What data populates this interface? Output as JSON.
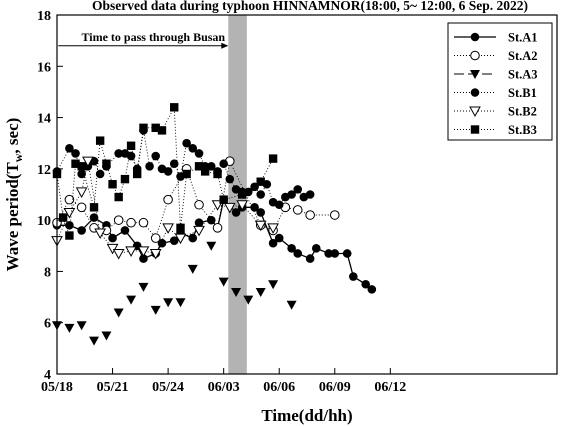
{
  "chart_data": {
    "type": "line",
    "title": "Observed data during typhoon HINNAMNOR(18:00, 5~ 12:00, 6  Sep. 2022)",
    "xlabel": "Time(dd/hh)",
    "ylabel_main": "Wave period(T",
    "ylabel_sub": "w",
    "ylabel_tail": ", sec)",
    "xlim": [
      0,
      27
    ],
    "ylim": [
      4,
      18
    ],
    "x_ticks": [
      {
        "x": 0,
        "label": "05/18"
      },
      {
        "x": 3,
        "label": "05/21"
      },
      {
        "x": 6,
        "label": "05/24"
      },
      {
        "x": 9,
        "label": "06/03"
      },
      {
        "x": 12,
        "label": "06/06"
      },
      {
        "x": 15,
        "label": "06/09"
      },
      {
        "x": 18,
        "label": "06/12"
      }
    ],
    "y_ticks": [
      4,
      6,
      8,
      10,
      12,
      14,
      16,
      18
    ],
    "grid": false,
    "legend_position": "top-right",
    "shaded_region": {
      "x_start": 9.25,
      "x_end": 10.25,
      "color": "#b3b3b3"
    },
    "annotation": {
      "text": "Time to pass through Busan",
      "arrow_to_x": 9.25,
      "y": 16.8
    },
    "x": [
      0,
      0.33,
      0.67,
      1.0,
      1.33,
      1.67,
      2.0,
      2.33,
      2.67,
      3.0,
      3.33,
      3.67,
      4.0,
      4.33,
      4.67,
      5.0,
      5.33,
      5.67,
      6.0,
      6.33,
      6.67,
      7.0,
      7.33,
      7.67,
      8.0,
      8.33,
      8.67,
      9.0,
      9.33,
      9.67,
      10.0,
      10.33,
      10.67,
      11.0,
      11.33,
      11.67,
      12.0,
      12.33,
      12.67,
      13.0,
      13.33,
      13.67,
      14.0,
      14.33,
      14.67,
      15.0,
      15.33,
      15.67,
      16.0,
      16.33,
      16.67,
      17.0,
      17.33,
      17.67,
      18.0
    ],
    "series": [
      {
        "name": "St.A1",
        "marker": "filled-circle",
        "line": "solid",
        "values": [
          9.8,
          null,
          9.8,
          null,
          9.6,
          null,
          10.1,
          null,
          9.8,
          9.3,
          null,
          9.6,
          null,
          9.0,
          8.5,
          null,
          8.7,
          9.1,
          null,
          9.2,
          9.5,
          null,
          9.3,
          9.9,
          null,
          10.0,
          9.7,
          10.8,
          null,
          10.3,
          10.5,
          null,
          10.5,
          10.3,
          null,
          9.1,
          9.3,
          null,
          8.9,
          8.7,
          null,
          8.5,
          8.9,
          null,
          8.7,
          8.7,
          null,
          8.7,
          7.8,
          null,
          7.5,
          7.3,
          null,
          null,
          null
        ]
      },
      {
        "name": "St.A2",
        "marker": "open-circle",
        "line": "dotted",
        "values": [
          9.9,
          null,
          10.8,
          null,
          10.5,
          null,
          9.7,
          null,
          9.6,
          null,
          10.0,
          null,
          9.9,
          null,
          9.9,
          null,
          9.3,
          null,
          10.8,
          null,
          null,
          12.0,
          null,
          10.6,
          null,
          null,
          9.7,
          null,
          12.3,
          null,
          null,
          null,
          null,
          9.8,
          null,
          9.6,
          null,
          10.5,
          null,
          10.4,
          null,
          10.2,
          null,
          null,
          null,
          10.2,
          null,
          null,
          null,
          null,
          null,
          null,
          null,
          null,
          null
        ]
      },
      {
        "name": "St.A3",
        "marker": "filled-triangle-down",
        "line": "dashed",
        "values": [
          5.9,
          null,
          5.8,
          null,
          5.9,
          null,
          5.3,
          null,
          5.5,
          null,
          6.4,
          null,
          6.9,
          null,
          7.4,
          null,
          6.5,
          null,
          6.8,
          null,
          6.8,
          null,
          8.1,
          null,
          null,
          9.0,
          null,
          7.6,
          null,
          7.2,
          null,
          6.9,
          null,
          7.2,
          null,
          7.5,
          null,
          null,
          6.7,
          null,
          null,
          null,
          null,
          null,
          null,
          null,
          null,
          null,
          null,
          null,
          null,
          null,
          null,
          null,
          null
        ]
      },
      {
        "name": "St.B1",
        "marker": "filled-circle",
        "line": "dotted",
        "values": [
          11.9,
          null,
          12.8,
          12.6,
          11.8,
          12.1,
          12.3,
          11.8,
          12.1,
          null,
          12.6,
          12.6,
          12.5,
          12.0,
          13.5,
          12.1,
          12.5,
          12.0,
          11.9,
          12.2,
          11.7,
          13.0,
          12.8,
          12.6,
          12.1,
          12.1,
          11.9,
          12.2,
          11.6,
          11.2,
          11.1,
          11.1,
          11.3,
          11.0,
          11.4,
          10.7,
          10.6,
          10.9,
          11.0,
          11.2,
          10.9,
          11.0,
          null,
          null,
          null,
          null,
          null,
          null,
          null,
          null,
          null,
          null,
          null,
          null,
          null
        ]
      },
      {
        "name": "St.B2",
        "marker": "open-triangle-down",
        "line": "dotted",
        "values": [
          9.2,
          null,
          10.3,
          null,
          11.1,
          12.3,
          null,
          9.5,
          null,
          8.9,
          8.7,
          null,
          8.8,
          null,
          8.8,
          null,
          8.7,
          null,
          9.7,
          null,
          9.3,
          null,
          null,
          9.6,
          null,
          null,
          10.6,
          null,
          10.5,
          null,
          10.6,
          null,
          null,
          9.8,
          null,
          9.7,
          null,
          null,
          null,
          null,
          null,
          null,
          null,
          null,
          null,
          null,
          null,
          null,
          null,
          null,
          null,
          null,
          null,
          null,
          null
        ]
      },
      {
        "name": "St.B3",
        "marker": "filled-square",
        "line": "dotted",
        "values": [
          11.8,
          10.1,
          9.4,
          12.2,
          12.1,
          null,
          10.5,
          13.1,
          12.2,
          11.4,
          10.9,
          11.6,
          12.9,
          11.8,
          13.6,
          null,
          13.6,
          13.5,
          null,
          14.4,
          9.7,
          11.8,
          null,
          12.1,
          11.9,
          null,
          11.8,
          10.8,
          null,
          null,
          11.0,
          null,
          null,
          11.5,
          null,
          12.4,
          null,
          null,
          null,
          null,
          null,
          null,
          null,
          null,
          null,
          null,
          null,
          null,
          null,
          null,
          null,
          null,
          null,
          null,
          null
        ]
      }
    ]
  }
}
